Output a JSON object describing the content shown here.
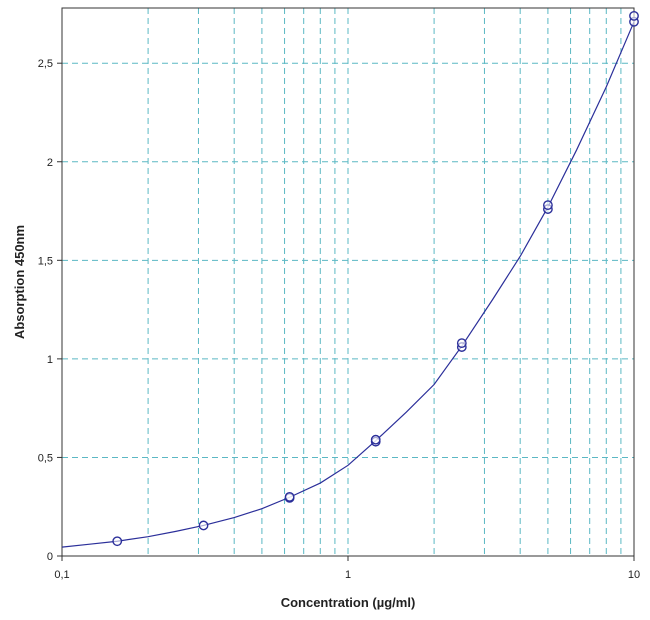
{
  "chart_data": {
    "type": "scatter",
    "xlabel": "Concentration (µg/ml)",
    "ylabel": "Absorption 450nm",
    "xscale": "log",
    "xlim": [
      0.1,
      10
    ],
    "ylim": [
      0,
      2.78
    ],
    "x_ticks": [
      {
        "value": 0.1,
        "label": "0,1"
      },
      {
        "value": 1,
        "label": "1"
      },
      {
        "value": 10,
        "label": "10"
      }
    ],
    "y_ticks": [
      {
        "value": 0,
        "label": "0"
      },
      {
        "value": 0.5,
        "label": "0,5"
      },
      {
        "value": 1,
        "label": "1"
      },
      {
        "value": 1.5,
        "label": "1,5"
      },
      {
        "value": 2,
        "label": "2"
      },
      {
        "value": 2.5,
        "label": "2,5"
      }
    ],
    "grid": true,
    "grid_color": "#5bb8c4",
    "marker_color": "#2b2f9a",
    "curve_color": "#2b2f9a",
    "points": [
      {
        "x": 0.156,
        "y": 0.075
      },
      {
        "x": 0.3125,
        "y": 0.155
      },
      {
        "x": 0.625,
        "y": 0.295
      },
      {
        "x": 0.625,
        "y": 0.3
      },
      {
        "x": 1.25,
        "y": 0.58
      },
      {
        "x": 1.25,
        "y": 0.59
      },
      {
        "x": 2.5,
        "y": 1.06
      },
      {
        "x": 2.5,
        "y": 1.08
      },
      {
        "x": 5,
        "y": 1.76
      },
      {
        "x": 5,
        "y": 1.78
      },
      {
        "x": 10,
        "y": 2.71
      },
      {
        "x": 10,
        "y": 2.74
      }
    ],
    "fit_curve": {
      "x": [
        0.1,
        0.125,
        0.156,
        0.2,
        0.25,
        0.3125,
        0.4,
        0.5,
        0.625,
        0.8,
        1,
        1.25,
        1.6,
        2,
        2.5,
        3.2,
        4,
        5,
        6.3,
        8,
        10
      ],
      "y": [
        0.045,
        0.06,
        0.075,
        0.098,
        0.125,
        0.155,
        0.195,
        0.24,
        0.298,
        0.37,
        0.46,
        0.585,
        0.73,
        0.87,
        1.065,
        1.3,
        1.52,
        1.77,
        2.06,
        2.38,
        2.71
      ]
    }
  }
}
